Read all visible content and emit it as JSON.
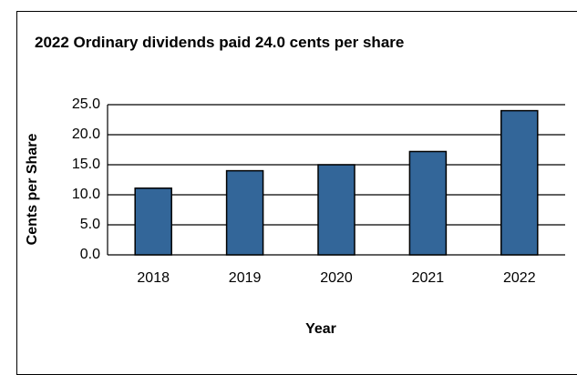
{
  "chart_data": {
    "type": "bar",
    "title": "2022 Ordinary dividends paid 24.0 cents per share",
    "x_label": "Year",
    "y_label": "Cents per Share",
    "categories": [
      "2018",
      "2019",
      "2020",
      "2021",
      "2022"
    ],
    "values": [
      11.1,
      14.0,
      15.0,
      17.2,
      24.0
    ],
    "color": "#336699",
    "ylim": [
      0,
      25
    ],
    "yticks": [
      {
        "value": 0,
        "label": "0.0"
      },
      {
        "value": 5,
        "label": "5.0"
      },
      {
        "value": 10,
        "label": "10.0"
      },
      {
        "value": 15,
        "label": "15.0"
      },
      {
        "value": 20,
        "label": "20.0"
      },
      {
        "value": 25,
        "label": "25.0"
      }
    ],
    "grid": true
  }
}
